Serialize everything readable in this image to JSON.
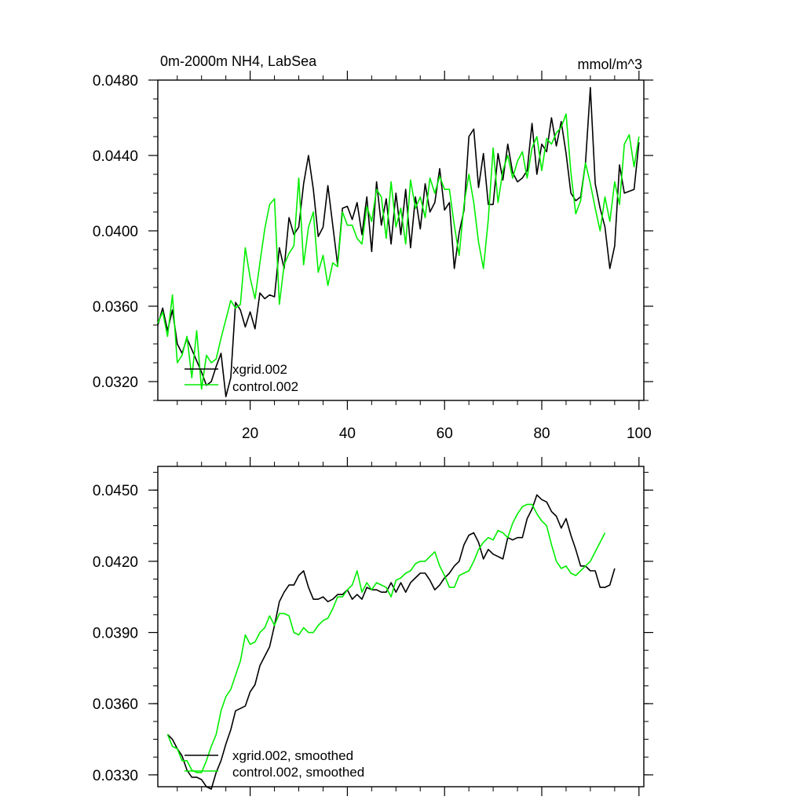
{
  "chart_data": [
    {
      "type": "line",
      "title": "0m-2000m NH4, LabSea",
      "units": "mmol/m^3",
      "xlabel": "",
      "ylabel": "",
      "xlim": [
        1,
        101
      ],
      "ylim": [
        0.031,
        0.048
      ],
      "yticks": [
        "0.0320",
        "0.0360",
        "0.0400",
        "0.0440",
        "0.0480"
      ],
      "xticks": [
        "20",
        "40",
        "60",
        "80",
        "100"
      ],
      "legend_position": "bottom-left",
      "grid": false,
      "colors": {
        "xgrid": "#000000",
        "control": "#00ee00"
      },
      "x_start": 1,
      "series": [
        {
          "name": "xgrid.002",
          "color": "#000000",
          "values": [
            0.035,
            0.0359,
            0.0347,
            0.0358,
            0.034,
            0.0335,
            0.0343,
            0.0337,
            0.0331,
            0.0325,
            0.0318,
            0.032,
            0.0328,
            0.0335,
            0.0312,
            0.0322,
            0.0362,
            0.0358,
            0.0349,
            0.0357,
            0.0348,
            0.0367,
            0.0364,
            0.0366,
            0.0365,
            0.0391,
            0.038,
            0.0407,
            0.0398,
            0.0402,
            0.0425,
            0.044,
            0.0422,
            0.0397,
            0.0402,
            0.0424,
            0.0403,
            0.0382,
            0.0412,
            0.0413,
            0.0406,
            0.0415,
            0.0398,
            0.0418,
            0.0389,
            0.0426,
            0.0403,
            0.0417,
            0.0393,
            0.042,
            0.0398,
            0.0422,
            0.0391,
            0.0418,
            0.0401,
            0.0425,
            0.041,
            0.0415,
            0.0433,
            0.0411,
            0.0415,
            0.038,
            0.0399,
            0.0411,
            0.045,
            0.0454,
            0.0423,
            0.0441,
            0.0414,
            0.0414,
            0.0441,
            0.0427,
            0.0446,
            0.0431,
            0.0426,
            0.0428,
            0.0432,
            0.0457,
            0.043,
            0.0446,
            0.0442,
            0.046,
            0.0445,
            0.0458,
            0.0441,
            0.042,
            0.0416,
            0.0418,
            0.0436,
            0.0476,
            0.0425,
            0.0412,
            0.0402,
            0.038,
            0.0392,
            0.0435,
            0.042,
            0.0421,
            0.0422,
            0.0447
          ]
        },
        {
          "name": "control.002",
          "color": "#00ee00",
          "values": [
            0.0351,
            0.0357,
            0.0344,
            0.0366,
            0.033,
            0.0334,
            0.0344,
            0.0322,
            0.0347,
            0.0316,
            0.0334,
            0.033,
            0.0332,
            0.0343,
            0.0353,
            0.0363,
            0.0359,
            0.0361,
            0.0391,
            0.0375,
            0.0364,
            0.0383,
            0.0401,
            0.0414,
            0.0417,
            0.0361,
            0.0382,
            0.0388,
            0.0392,
            0.0428,
            0.0382,
            0.0402,
            0.041,
            0.0378,
            0.0387,
            0.0371,
            0.0383,
            0.0381,
            0.041,
            0.0403,
            0.0403,
            0.0396,
            0.0393,
            0.0413,
            0.0405,
            0.0422,
            0.0418,
            0.0396,
            0.0426,
            0.0402,
            0.0412,
            0.0393,
            0.0427,
            0.0412,
            0.0418,
            0.0407,
            0.0428,
            0.042,
            0.0429,
            0.0422,
            0.0422,
            0.0403,
            0.0387,
            0.0414,
            0.043,
            0.0415,
            0.0394,
            0.038,
            0.0406,
            0.0444,
            0.0415,
            0.0432,
            0.044,
            0.0428,
            0.0437,
            0.0442,
            0.0428,
            0.0444,
            0.045,
            0.0432,
            0.0449,
            0.0446,
            0.0452,
            0.0455,
            0.0462,
            0.0431,
            0.0409,
            0.0416,
            0.0436,
            0.0425,
            0.0412,
            0.04,
            0.0418,
            0.0405,
            0.0426,
            0.0414,
            0.0446,
            0.0451,
            0.0434,
            0.045
          ]
        }
      ]
    },
    {
      "type": "line",
      "title": "",
      "xlabel": "",
      "ylabel": "",
      "xlim": [
        1,
        101
      ],
      "ylim": [
        0.0325,
        0.046
      ],
      "yticks": [
        "0.0330",
        "0.0360",
        "0.0390",
        "0.0420",
        "0.0450"
      ],
      "xticks": [],
      "legend_position": "bottom-left",
      "grid": false,
      "x_start": 3,
      "series": [
        {
          "name": "xgrid.002, smoothed",
          "color": "#000000",
          "values": [
            0.0347,
            0.0345,
            0.0341,
            0.0338,
            0.0332,
            0.0329,
            0.0329,
            0.0328,
            0.0325,
            0.0324,
            0.0331,
            0.0336,
            0.0343,
            0.0349,
            0.0357,
            0.0358,
            0.0359,
            0.0365,
            0.0368,
            0.0376,
            0.038,
            0.0384,
            0.0393,
            0.0403,
            0.0407,
            0.041,
            0.041,
            0.0414,
            0.0416,
            0.0409,
            0.0404,
            0.0404,
            0.0405,
            0.0403,
            0.0404,
            0.0406,
            0.0406,
            0.0408,
            0.0404,
            0.0406,
            0.0404,
            0.0409,
            0.0408,
            0.0408,
            0.0407,
            0.0407,
            0.0411,
            0.0407,
            0.0411,
            0.0407,
            0.0411,
            0.0413,
            0.0415,
            0.0415,
            0.0412,
            0.0408,
            0.041,
            0.0413,
            0.0415,
            0.0418,
            0.042,
            0.0427,
            0.0431,
            0.0432,
            0.0428,
            0.0421,
            0.0425,
            0.0423,
            0.0422,
            0.0421,
            0.043,
            0.0429,
            0.043,
            0.043,
            0.0438,
            0.0442,
            0.0448,
            0.0446,
            0.0445,
            0.0441,
            0.0439,
            0.0434,
            0.0438,
            0.0431,
            0.0425,
            0.0418,
            0.0418,
            0.0416,
            0.0416,
            0.0409,
            0.0409,
            0.041,
            0.0417
          ]
        },
        {
          "name": "control.002, smoothed",
          "color": "#00ee00",
          "values": [
            0.0347,
            0.0342,
            0.0341,
            0.0336,
            0.0336,
            0.0332,
            0.0331,
            0.0331,
            0.0336,
            0.0342,
            0.0347,
            0.0357,
            0.0363,
            0.0366,
            0.0372,
            0.0378,
            0.0389,
            0.0385,
            0.0386,
            0.039,
            0.0392,
            0.0397,
            0.0393,
            0.0398,
            0.0398,
            0.0397,
            0.039,
            0.0389,
            0.0392,
            0.039,
            0.039,
            0.0393,
            0.0395,
            0.0396,
            0.04,
            0.0405,
            0.0405,
            0.0408,
            0.041,
            0.0416,
            0.0407,
            0.0411,
            0.0408,
            0.0411,
            0.041,
            0.0409,
            0.0405,
            0.0412,
            0.0413,
            0.0415,
            0.0416,
            0.0419,
            0.042,
            0.042,
            0.0422,
            0.0424,
            0.0418,
            0.0414,
            0.0409,
            0.0409,
            0.0414,
            0.0415,
            0.0416,
            0.042,
            0.0425,
            0.0428,
            0.043,
            0.0429,
            0.0433,
            0.0432,
            0.043,
            0.0436,
            0.044,
            0.0443,
            0.0444,
            0.0444,
            0.044,
            0.0437,
            0.0435,
            0.0427,
            0.042,
            0.0417,
            0.0418,
            0.0415,
            0.0414,
            0.0416,
            0.0418,
            0.042,
            0.0424,
            0.0428,
            0.0432
          ]
        }
      ]
    }
  ]
}
